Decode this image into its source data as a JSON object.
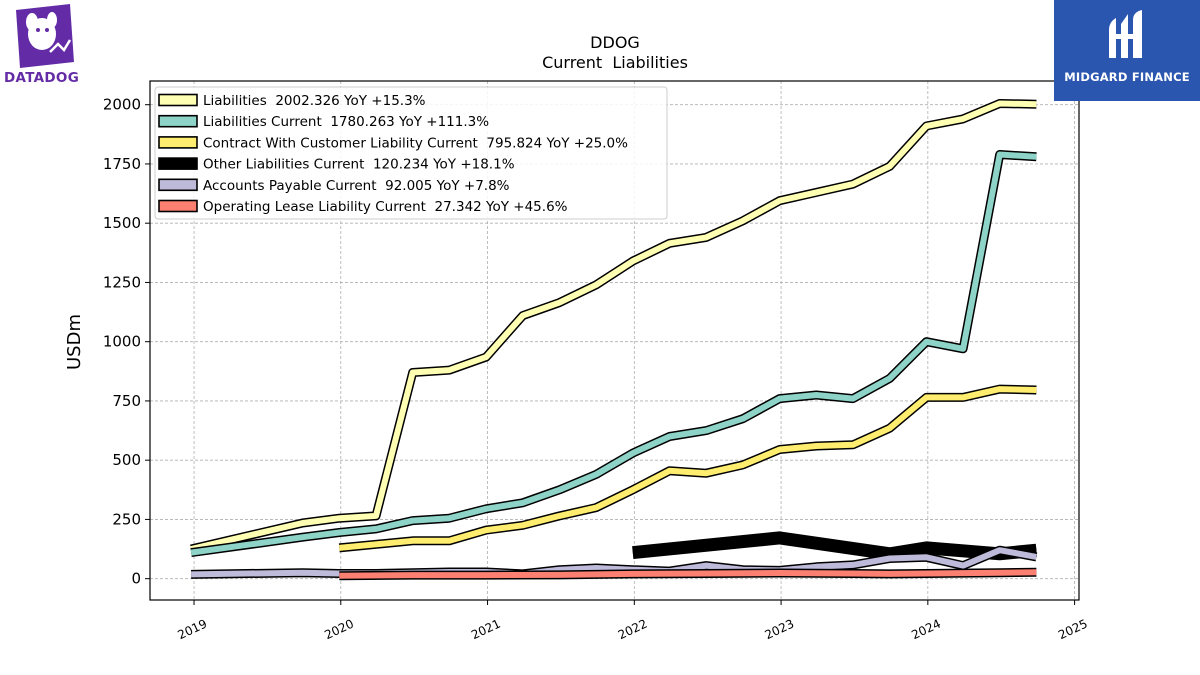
{
  "logos": {
    "left_text": "DATADOG",
    "right_text": "MIDGARD FINANCE",
    "left_color": "#632ca6",
    "right_color": "#2a56b0"
  },
  "chart_data": {
    "type": "line",
    "title": "DDOG",
    "subtitle": "Current  Liabilities",
    "ylabel": "USDm",
    "xlabel": "",
    "ylim": [
      -90,
      2100
    ],
    "xlim": [
      2018.7,
      2025.03
    ],
    "yticks": [
      0,
      250,
      500,
      750,
      1000,
      1250,
      1500,
      1750,
      2000
    ],
    "xticks": [
      2019,
      2020,
      2021,
      2022,
      2023,
      2024,
      2025
    ],
    "grid": true,
    "legend_position": "top-left",
    "series": [
      {
        "name": "Liabilities  2002.326 YoY +15.3%",
        "color": "#ffffb3",
        "width": 6,
        "points": [
          [
            2018.98,
            125
          ],
          [
            2019.74,
            235
          ],
          [
            2019.99,
            255
          ],
          [
            2020.24,
            265
          ],
          [
            2020.49,
            870
          ],
          [
            2020.74,
            880
          ],
          [
            2020.99,
            935
          ],
          [
            2021.24,
            1110
          ],
          [
            2021.49,
            1165
          ],
          [
            2021.74,
            1240
          ],
          [
            2021.99,
            1340
          ],
          [
            2022.24,
            1415
          ],
          [
            2022.49,
            1440
          ],
          [
            2022.74,
            1510
          ],
          [
            2022.99,
            1595
          ],
          [
            2023.24,
            1630
          ],
          [
            2023.49,
            1665
          ],
          [
            2023.74,
            1740
          ],
          [
            2023.99,
            1910
          ],
          [
            2024.24,
            1940
          ],
          [
            2024.49,
            2005
          ],
          [
            2024.74,
            2002
          ]
        ]
      },
      {
        "name": "Liabilities Current  1780.263 YoY +111.3%",
        "color": "#8dd3c7",
        "width": 6,
        "points": [
          [
            2018.98,
            110
          ],
          [
            2019.74,
            175
          ],
          [
            2019.99,
            195
          ],
          [
            2020.24,
            210
          ],
          [
            2020.49,
            245
          ],
          [
            2020.74,
            255
          ],
          [
            2020.99,
            295
          ],
          [
            2021.24,
            320
          ],
          [
            2021.49,
            375
          ],
          [
            2021.74,
            440
          ],
          [
            2021.99,
            530
          ],
          [
            2022.24,
            600
          ],
          [
            2022.49,
            625
          ],
          [
            2022.74,
            675
          ],
          [
            2022.99,
            760
          ],
          [
            2023.24,
            775
          ],
          [
            2023.49,
            760
          ],
          [
            2023.74,
            845
          ],
          [
            2023.99,
            1000
          ],
          [
            2024.24,
            970
          ],
          [
            2024.49,
            1790
          ],
          [
            2024.74,
            1780
          ]
        ]
      },
      {
        "name": "Contract With Customer Liability Current  795.824 YoY +25.0%",
        "color": "#ffed6f",
        "width": 6,
        "points": [
          [
            2019.99,
            130
          ],
          [
            2020.49,
            160
          ],
          [
            2020.74,
            160
          ],
          [
            2020.99,
            205
          ],
          [
            2021.24,
            225
          ],
          [
            2021.49,
            265
          ],
          [
            2021.74,
            300
          ],
          [
            2021.99,
            375
          ],
          [
            2022.24,
            455
          ],
          [
            2022.49,
            445
          ],
          [
            2022.74,
            480
          ],
          [
            2022.99,
            545
          ],
          [
            2023.24,
            560
          ],
          [
            2023.49,
            565
          ],
          [
            2023.74,
            635
          ],
          [
            2023.99,
            765
          ],
          [
            2024.24,
            765
          ],
          [
            2024.49,
            800
          ],
          [
            2024.74,
            796
          ]
        ]
      },
      {
        "name": "Other Liabilities Current  120.234 YoY +18.1%",
        "color": "#000000",
        "width": 10,
        "points": [
          [
            2021.99,
            110
          ],
          [
            2022.99,
            172
          ],
          [
            2023.74,
            105
          ],
          [
            2023.99,
            130
          ],
          [
            2024.49,
            105
          ],
          [
            2024.74,
            120
          ]
        ]
      },
      {
        "name": "Accounts Payable Current  92.005 YoY +7.8%",
        "color": "#bebada",
        "width": 6,
        "points": [
          [
            2018.98,
            18
          ],
          [
            2019.74,
            25
          ],
          [
            2019.99,
            22
          ],
          [
            2020.24,
            22
          ],
          [
            2020.49,
            25
          ],
          [
            2020.74,
            28
          ],
          [
            2020.99,
            28
          ],
          [
            2021.24,
            20
          ],
          [
            2021.49,
            38
          ],
          [
            2021.74,
            45
          ],
          [
            2021.99,
            38
          ],
          [
            2022.24,
            32
          ],
          [
            2022.49,
            55
          ],
          [
            2022.74,
            38
          ],
          [
            2022.99,
            35
          ],
          [
            2023.24,
            50
          ],
          [
            2023.49,
            58
          ],
          [
            2023.74,
            85
          ],
          [
            2023.99,
            90
          ],
          [
            2024.24,
            55
          ],
          [
            2024.49,
            120
          ],
          [
            2024.74,
            92
          ]
        ]
      },
      {
        "name": "Operating Lease Liability Current  27.342 YoY +45.6%",
        "color": "#fb8072",
        "width": 6,
        "points": [
          [
            2019.99,
            12
          ],
          [
            2020.49,
            15
          ],
          [
            2020.99,
            15
          ],
          [
            2021.49,
            16
          ],
          [
            2021.99,
            20
          ],
          [
            2022.49,
            22
          ],
          [
            2022.99,
            24
          ],
          [
            2023.49,
            22
          ],
          [
            2023.74,
            20
          ],
          [
            2023.99,
            22
          ],
          [
            2024.49,
            25
          ],
          [
            2024.74,
            27
          ]
        ]
      }
    ]
  }
}
